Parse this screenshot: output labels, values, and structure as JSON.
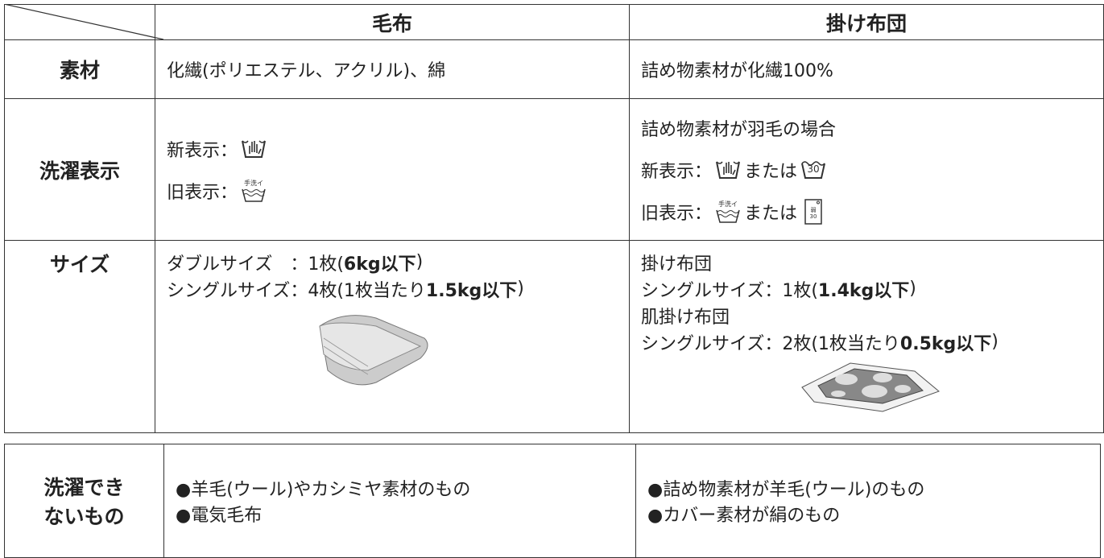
{
  "table": {
    "header": [
      "毛布",
      "掛け布団"
    ],
    "rows": [
      {
        "label": "素材",
        "cells": [
          [
            [
              "化繊(ポリエステル、アクリル)、綿"
            ]
          ],
          [
            [
              "詰め物素材が化繊100%"
            ]
          ]
        ]
      },
      {
        "label": "洗濯表示",
        "cells": [
          [
            [
              "新表示：",
              {
                "icon": "hand"
              }
            ],
            [
              "旧表示：",
              {
                "icon": "handold",
                "labels": [
                  "手洗イ"
                ]
              }
            ]
          ],
          [
            [
              "詰め物素材が羽毛の場合"
            ],
            [
              "新表示：",
              {
                "icon": "hand"
              },
              "または",
              {
                "icon": "tub",
                "labels": [
                  "30"
                ]
              }
            ],
            [
              "旧表示：",
              {
                "icon": "handold",
                "labels": [
                  "手洗イ"
                ]
              },
              "または",
              {
                "icon": "machine",
                "labels": [
                  "弱",
                  "30"
                ]
              }
            ]
          ]
        ]
      },
      {
        "label": "サイズ",
        "cells": [
          [
            [
              "ダブルサイズ　：1枚(",
              {
                "bold": "6kg以下"
              },
              ")"
            ],
            [
              "シングルサイズ：4枚(1枚当たり",
              {
                "bold": "1.5kg以下"
              },
              ")"
            ]
          ],
          [
            [
              "掛け布団"
            ],
            [
              "シングルサイズ：1枚(",
              {
                "bold": "1.4kg以下"
              },
              ")"
            ],
            [
              "肌掛け布団"
            ],
            [
              "シングルサイズ：2枚(1枚当たり",
              {
                "bold": "0.5kg以下"
              },
              ")"
            ]
          ]
        ]
      }
    ]
  },
  "not_washable": {
    "label": [
      "洗濯でき",
      "ないもの"
    ],
    "cells": [
      [
        "●羊毛(ウール)やカシミヤ素材のもの",
        "●電気毛布"
      ],
      [
        "●詰め物素材が羊毛(ウール)のもの",
        "●カバー素材が絹のもの"
      ]
    ]
  }
}
